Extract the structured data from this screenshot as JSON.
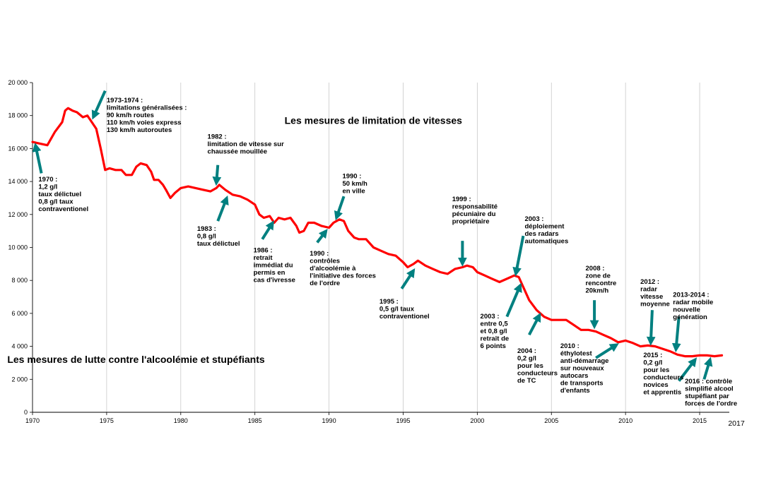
{
  "chart_data": {
    "type": "line",
    "xlim": [
      1970,
      2017
    ],
    "ylim": [
      0,
      20000
    ],
    "grid": "vertical",
    "y_ticks": [
      "0",
      "2 000",
      "4 000",
      "6 000",
      "8 000",
      "10 000",
      "12 000",
      "14 000",
      "16 000",
      "18 000",
      "20 000"
    ],
    "x_ticks": [
      "1970",
      "1975",
      "1980",
      "1985",
      "1990",
      "1995",
      "2000",
      "2005",
      "2010",
      "2015"
    ],
    "x_last_label": "2017",
    "series": [
      {
        "color": "#ff0000",
        "points": [
          [
            1970.0,
            16400
          ],
          [
            1970.5,
            16300
          ],
          [
            1971.0,
            16200
          ],
          [
            1971.5,
            17000
          ],
          [
            1972.0,
            17600
          ],
          [
            1972.2,
            18300
          ],
          [
            1972.4,
            18450
          ],
          [
            1972.7,
            18300
          ],
          [
            1973.0,
            18200
          ],
          [
            1973.4,
            17900
          ],
          [
            1973.7,
            18000
          ],
          [
            1974.0,
            17600
          ],
          [
            1974.3,
            17200
          ],
          [
            1974.6,
            16000
          ],
          [
            1974.9,
            14700
          ],
          [
            1975.2,
            14800
          ],
          [
            1975.6,
            14700
          ],
          [
            1976.0,
            14700
          ],
          [
            1976.3,
            14400
          ],
          [
            1976.7,
            14400
          ],
          [
            1977.0,
            14900
          ],
          [
            1977.3,
            15100
          ],
          [
            1977.7,
            15000
          ],
          [
            1978.0,
            14600
          ],
          [
            1978.2,
            14100
          ],
          [
            1978.5,
            14100
          ],
          [
            1978.8,
            13800
          ],
          [
            1979.0,
            13500
          ],
          [
            1979.3,
            13000
          ],
          [
            1979.6,
            13300
          ],
          [
            1980.0,
            13600
          ],
          [
            1980.5,
            13700
          ],
          [
            1981.0,
            13600
          ],
          [
            1981.5,
            13500
          ],
          [
            1982.0,
            13400
          ],
          [
            1982.4,
            13600
          ],
          [
            1982.6,
            13800
          ],
          [
            1983.0,
            13500
          ],
          [
            1983.5,
            13200
          ],
          [
            1984.0,
            13100
          ],
          [
            1984.5,
            12900
          ],
          [
            1985.0,
            12600
          ],
          [
            1985.3,
            12000
          ],
          [
            1985.6,
            11800
          ],
          [
            1986.0,
            11900
          ],
          [
            1986.3,
            11500
          ],
          [
            1986.6,
            11800
          ],
          [
            1987.0,
            11700
          ],
          [
            1987.4,
            11800
          ],
          [
            1987.8,
            11300
          ],
          [
            1988.0,
            10900
          ],
          [
            1988.3,
            11000
          ],
          [
            1988.6,
            11500
          ],
          [
            1989.0,
            11500
          ],
          [
            1989.5,
            11300
          ],
          [
            1990.0,
            11200
          ],
          [
            1990.3,
            11500
          ],
          [
            1990.7,
            11700
          ],
          [
            1991.0,
            11600
          ],
          [
            1991.3,
            11000
          ],
          [
            1991.7,
            10600
          ],
          [
            1992.0,
            10500
          ],
          [
            1992.5,
            10500
          ],
          [
            1993.0,
            10000
          ],
          [
            1993.5,
            9800
          ],
          [
            1994.0,
            9600
          ],
          [
            1994.5,
            9500
          ],
          [
            1995.0,
            9100
          ],
          [
            1995.3,
            8800
          ],
          [
            1995.7,
            9000
          ],
          [
            1996.0,
            9200
          ],
          [
            1996.5,
            8900
          ],
          [
            1997.0,
            8700
          ],
          [
            1997.5,
            8500
          ],
          [
            1998.0,
            8400
          ],
          [
            1998.5,
            8700
          ],
          [
            1999.0,
            8800
          ],
          [
            1999.3,
            8900
          ],
          [
            1999.7,
            8800
          ],
          [
            2000.0,
            8500
          ],
          [
            2000.5,
            8300
          ],
          [
            2001.0,
            8100
          ],
          [
            2001.5,
            7900
          ],
          [
            2002.0,
            8100
          ],
          [
            2002.5,
            8300
          ],
          [
            2002.8,
            8200
          ],
          [
            2003.0,
            7800
          ],
          [
            2003.2,
            7400
          ],
          [
            2003.5,
            6800
          ],
          [
            2004.0,
            6200
          ],
          [
            2004.5,
            5800
          ],
          [
            2005.0,
            5600
          ],
          [
            2005.5,
            5600
          ],
          [
            2006.0,
            5600
          ],
          [
            2006.5,
            5300
          ],
          [
            2007.0,
            5000
          ],
          [
            2007.5,
            5000
          ],
          [
            2008.0,
            4900
          ],
          [
            2008.5,
            4700
          ],
          [
            2009.0,
            4500
          ],
          [
            2009.5,
            4250
          ],
          [
            2010.0,
            4350
          ],
          [
            2010.5,
            4200
          ],
          [
            2011.0,
            4000
          ],
          [
            2011.5,
            4050
          ],
          [
            2012.0,
            4000
          ],
          [
            2012.5,
            3850
          ],
          [
            2013.0,
            3700
          ],
          [
            2013.5,
            3500
          ],
          [
            2014.0,
            3400
          ],
          [
            2014.5,
            3400
          ],
          [
            2015.0,
            3450
          ],
          [
            2015.5,
            3450
          ],
          [
            2016.0,
            3400
          ],
          [
            2016.5,
            3450
          ]
        ]
      }
    ],
    "titles": [
      {
        "text": "Les mesures de limitation de vitesses",
        "x": 1987,
        "y": 17500
      },
      {
        "text": "Les mesures de lutte contre l'alcoolémie et stupéfiants",
        "x": 1968.3,
        "y": 3000
      }
    ],
    "arrow_color": "#008080",
    "annotations": [
      {
        "lines": [
          "1970 :",
          "1,2 g/l",
          "taux délictuel",
          "0,8 g/l  taux",
          "contraventionel"
        ],
        "text_x": 1970.4,
        "text_y": 14000,
        "arrow": [
          [
            1970.6,
            14500
          ],
          [
            1970.2,
            16200
          ]
        ]
      },
      {
        "lines": [
          "1973-1974 :",
          "limitations  généralisées :",
          "90 km/h  routes",
          "110 km/h  voies express",
          "130 km/h  autoroutes"
        ],
        "text_x": 1975.0,
        "text_y": 18800,
        "arrow": [
          [
            1974.9,
            19500
          ],
          [
            1974.1,
            17900
          ]
        ]
      },
      {
        "lines": [
          "1982 :",
          "limitation   de vitesse sur",
          "chaussée mouillée"
        ],
        "text_x": 1981.8,
        "text_y": 16600,
        "arrow": [
          [
            1982.5,
            15000
          ],
          [
            1982.4,
            13900
          ]
        ]
      },
      {
        "lines": [
          "1983 :",
          " 0,8 g/l",
          "taux délictuel"
        ],
        "text_x": 1981.1,
        "text_y": 11000,
        "arrow": [
          [
            1982.5,
            11600
          ],
          [
            1983.1,
            13000
          ]
        ]
      },
      {
        "lines": [
          "1986 :",
          "retrait",
          "immédiat  du",
          "permis  en",
          "cas d'ivresse"
        ],
        "text_x": 1984.9,
        "text_y": 9700,
        "arrow": [
          [
            1985.5,
            10500
          ],
          [
            1986.2,
            11500
          ]
        ]
      },
      {
        "lines": [
          "1990 :",
          "contrôles",
          "d'alcoolémie  à",
          "l'initiative  des forces",
          "de l'ordre"
        ],
        "text_x": 1988.7,
        "text_y": 9500,
        "arrow": [
          [
            1989.2,
            10300
          ],
          [
            1989.8,
            11000
          ]
        ]
      },
      {
        "lines": [
          "1990 :",
          "50 km/h",
          "en ville"
        ],
        "text_x": 1990.9,
        "text_y": 14200,
        "arrow": [
          [
            1991.0,
            13100
          ],
          [
            1990.5,
            11800
          ]
        ]
      },
      {
        "lines": [
          "1995 :",
          " 0,5 g/l  taux",
          "contraventionel"
        ],
        "text_x": 1993.4,
        "text_y": 6600,
        "arrow": [
          [
            1994.9,
            7500
          ],
          [
            1995.7,
            8600
          ]
        ]
      },
      {
        "lines": [
          "1999 :",
          "responsabilité",
          "pécuniaire  du",
          "propriétaire"
        ],
        "text_x": 1998.3,
        "text_y": 12800,
        "arrow": [
          [
            1999.0,
            10400
          ],
          [
            1999.0,
            9000
          ]
        ]
      },
      {
        "lines": [
          "2003 :",
          "déploiement",
          "des  radars",
          "automatiques"
        ],
        "text_x": 2003.2,
        "text_y": 11600,
        "arrow": [
          [
            2003.1,
            10700
          ],
          [
            2002.6,
            8400
          ]
        ]
      },
      {
        "lines": [
          "2003 :",
          "entre 0,5",
          "et 0,8 g/l",
          "retrait de",
          "6 points"
        ],
        "text_x": 2000.2,
        "text_y": 5700,
        "arrow": [
          [
            2002.0,
            5800
          ],
          [
            2002.9,
            7700
          ]
        ]
      },
      {
        "lines": [
          "2004 :",
          "0,2 g/l",
          "pour les",
          "conducteurs",
          "de TC"
        ],
        "text_x": 2002.7,
        "text_y": 3600,
        "arrow": [
          [
            2003.5,
            4700
          ],
          [
            2004.2,
            5900
          ]
        ]
      },
      {
        "lines": [
          "2008 :",
          "zone de",
          "rencontre",
          "20km/h"
        ],
        "text_x": 2007.3,
        "text_y": 8600,
        "arrow": [
          [
            2007.9,
            6800
          ],
          [
            2007.9,
            5200
          ]
        ]
      },
      {
        "lines": [
          "2010 :",
          "éthylotest",
          "anti-démarrage",
          "sur nouveaux",
          "autocars",
          "de transports",
          "d'enfants"
        ],
        "text_x": 2005.6,
        "text_y": 3900,
        "arrow": [
          [
            2008.0,
            3300
          ],
          [
            2009.4,
            4100
          ]
        ]
      },
      {
        "lines": [
          "2012 :",
          "radar",
          "vitesse",
          "moyenne"
        ],
        "text_x": 2011.0,
        "text_y": 7800,
        "arrow": [
          [
            2011.8,
            6200
          ],
          [
            2011.7,
            4200
          ]
        ]
      },
      {
        "lines": [
          "2013-2014 :",
          "radar mobile",
          "nouvelle",
          "génération"
        ],
        "text_x": 2013.2,
        "text_y": 7000,
        "arrow": [
          [
            2013.6,
            5800
          ],
          [
            2013.4,
            3800
          ]
        ]
      },
      {
        "lines": [
          "2015 :",
          " 0,2 g/l",
          "pour les",
          "conducteurs",
          "novices",
          "et apprentis"
        ],
        "text_x": 2011.2,
        "text_y": 3350,
        "arrow": [
          [
            2013.6,
            1900
          ],
          [
            2014.7,
            3200
          ]
        ]
      },
      {
        "lines": [
          "2016 : contrôle",
          "simplifié alcool",
          "stupéfiant par",
          "forces de l'ordre"
        ],
        "text_x": 2014.0,
        "text_y": 1750,
        "arrow": [
          [
            2015.3,
            2000
          ],
          [
            2015.7,
            3200
          ]
        ]
      }
    ]
  }
}
